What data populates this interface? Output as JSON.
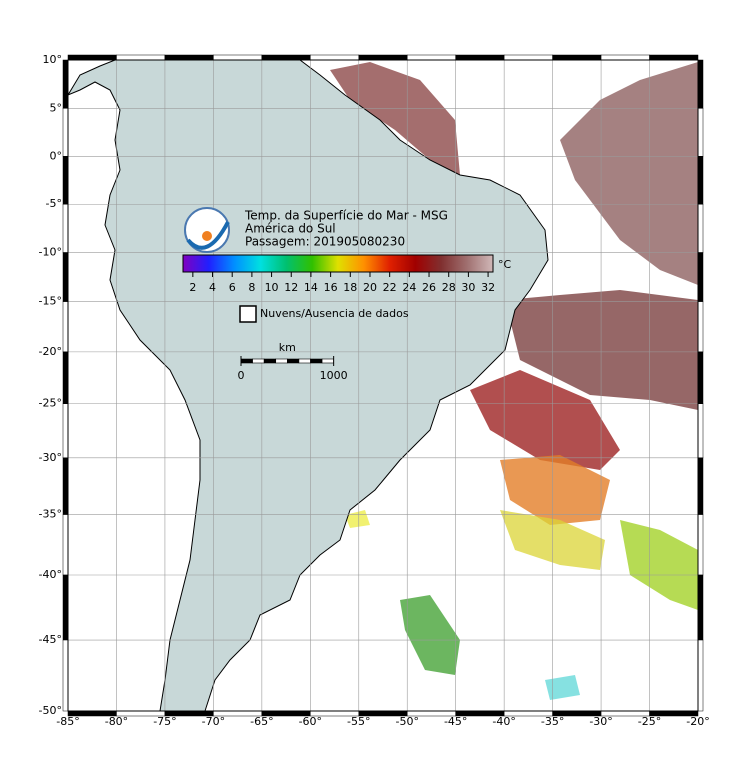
{
  "header": {
    "title_lines": [
      "Temp. da Superfície do Mar - MSG",
      "América do Sul",
      "Passagem: 201905080230"
    ]
  },
  "map": {
    "projection": "mercator",
    "grid": true,
    "xlim": [
      -85,
      -20
    ],
    "ylim": [
      -50,
      10
    ],
    "xticks": [
      {
        "value": -85,
        "label": "-85°"
      },
      {
        "value": -80,
        "label": "-80°"
      },
      {
        "value": -75,
        "label": "-75°"
      },
      {
        "value": -70,
        "label": "-70°"
      },
      {
        "value": -65,
        "label": "-65°"
      },
      {
        "value": -60,
        "label": "-60°"
      },
      {
        "value": -55,
        "label": "-55°"
      },
      {
        "value": -50,
        "label": "-50°"
      },
      {
        "value": -45,
        "label": "-45°"
      },
      {
        "value": -40,
        "label": "-40°"
      },
      {
        "value": -35,
        "label": "-35°"
      },
      {
        "value": -30,
        "label": "-30°"
      },
      {
        "value": -25,
        "label": "-25°"
      },
      {
        "value": -20,
        "label": "-20°"
      }
    ],
    "yticks": [
      {
        "value": 10,
        "label": "10°"
      },
      {
        "value": 5,
        "label": "5°"
      },
      {
        "value": 0,
        "label": "0°"
      },
      {
        "value": -5,
        "label": "-5°"
      },
      {
        "value": -10,
        "label": "-10°"
      },
      {
        "value": -15,
        "label": "-15°"
      },
      {
        "value": -20,
        "label": "-20°"
      },
      {
        "value": -25,
        "label": "-25°"
      },
      {
        "value": -30,
        "label": "-30°"
      },
      {
        "value": -35,
        "label": "-35°"
      },
      {
        "value": -40,
        "label": "-40°"
      },
      {
        "value": -45,
        "label": "-45°"
      },
      {
        "value": -50,
        "label": "-50°"
      }
    ]
  },
  "colorbar": {
    "lim": [
      1,
      32.5
    ],
    "ticks": [
      2,
      4,
      6,
      8,
      10,
      12,
      14,
      16,
      18,
      20,
      22,
      24,
      26,
      28,
      30,
      32
    ],
    "unit": "°C",
    "colors": [
      "#8000c0",
      "#2020ff",
      "#0090ff",
      "#00e0e0",
      "#00c070",
      "#30c000",
      "#e0e000",
      "#ff9000",
      "#e02000",
      "#a00000",
      "#803030",
      "#a07070",
      "#d0b8b8"
    ]
  },
  "legend": {
    "label": "Nuvens/Ausencia de dados"
  },
  "scale_bar": {
    "unit": "km",
    "ticks": [
      0,
      1000
    ]
  }
}
